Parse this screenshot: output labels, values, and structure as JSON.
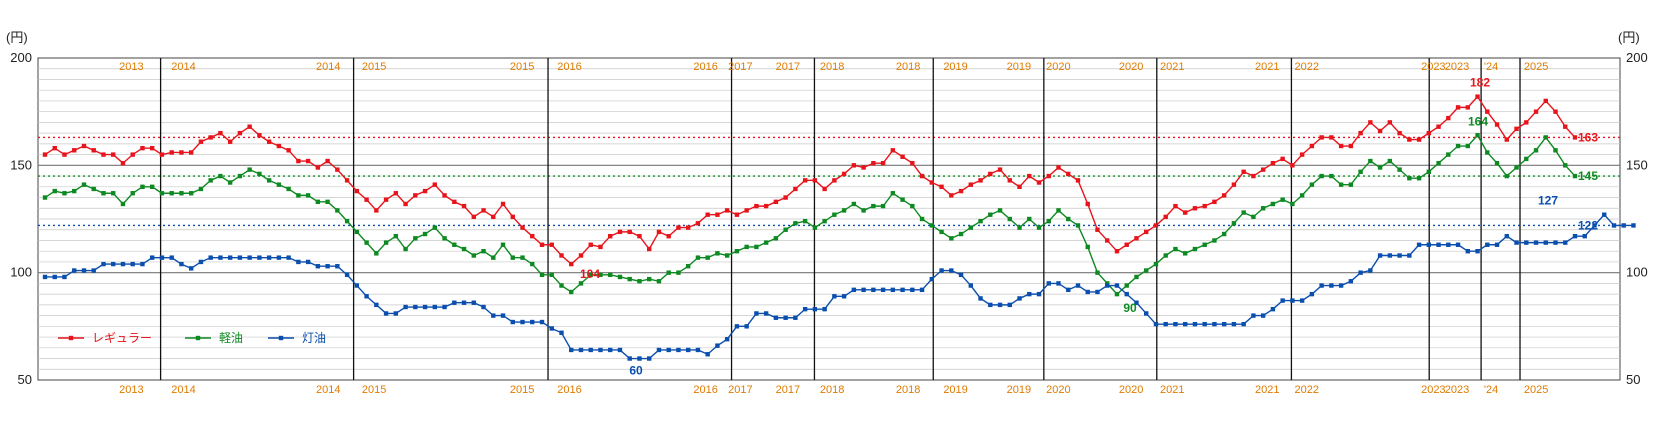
{
  "chart_data": {
    "type": "line",
    "unit_left": "(円)",
    "unit_right": "(円)",
    "ylim": [
      50,
      200
    ],
    "yticks": [
      50,
      100,
      150,
      200
    ],
    "grid": true,
    "legend_position": "bottom-left",
    "year_labels": [
      "2013",
      "2014",
      "2014",
      "2015",
      "2015",
      "2016",
      "2016",
      "2017",
      "2017",
      "2018",
      "2018",
      "2019",
      "2019",
      "2020",
      "2020",
      "2021",
      "2021",
      "2022",
      "2023",
      "2023",
      "'24",
      "2025"
    ],
    "series": [
      {
        "name": "レギュラー",
        "color": "#e8141b",
        "values": [
          155,
          158,
          155,
          157,
          159,
          157,
          155,
          155,
          151,
          155,
          158,
          158,
          155,
          156,
          156,
          156,
          161,
          163,
          165,
          161,
          165,
          168,
          164,
          161,
          159,
          157,
          152,
          152,
          149,
          152,
          148,
          143,
          138,
          134,
          129,
          134,
          137,
          132,
          136,
          138,
          141,
          136,
          133,
          131,
          126,
          129,
          126,
          132,
          126,
          121,
          117,
          113,
          113,
          108,
          104,
          108,
          113,
          112,
          117,
          119,
          119,
          117,
          111,
          119,
          117,
          121,
          121,
          123,
          127,
          127,
          129,
          127,
          129,
          131,
          131,
          133,
          135,
          139,
          143,
          143,
          139,
          143,
          146,
          150,
          149,
          151,
          151,
          157,
          154,
          151,
          145,
          142,
          140,
          136,
          138,
          141,
          143,
          146,
          148,
          143,
          140,
          145,
          142,
          145,
          149,
          146,
          143,
          132,
          120,
          115,
          110,
          113,
          116,
          119,
          122,
          126,
          131,
          128,
          130,
          131,
          133,
          136,
          141,
          147,
          145,
          148,
          151,
          153,
          150,
          155,
          159,
          163,
          163,
          159,
          159,
          165,
          170,
          166,
          170,
          165,
          162,
          162,
          165,
          168,
          172,
          177,
          177,
          182,
          175,
          169,
          162,
          167,
          170,
          175,
          180,
          175,
          168,
          163
        ],
        "ref_value": 163
      },
      {
        "name": "軽油",
        "color": "#0e8a22",
        "values": [
          135,
          138,
          137,
          138,
          141,
          139,
          137,
          137,
          132,
          137,
          140,
          140,
          137,
          137,
          137,
          137,
          139,
          143,
          145,
          142,
          145,
          148,
          146,
          143,
          141,
          139,
          136,
          136,
          133,
          133,
          129,
          124,
          119,
          114,
          109,
          114,
          117,
          111,
          116,
          118,
          121,
          116,
          113,
          111,
          108,
          110,
          107,
          113,
          107,
          107,
          104,
          99,
          99,
          94,
          91,
          95,
          99,
          99,
          99,
          98,
          97,
          96,
          97,
          96,
          100,
          100,
          103,
          107,
          107,
          109,
          108,
          110,
          112,
          112,
          114,
          116,
          120,
          123,
          124,
          121,
          124,
          127,
          129,
          132,
          129,
          131,
          131,
          137,
          134,
          131,
          125,
          122,
          119,
          116,
          118,
          121,
          124,
          127,
          129,
          125,
          121,
          125,
          121,
          124,
          129,
          125,
          122,
          112,
          100,
          95,
          90,
          94,
          98,
          101,
          104,
          108,
          111,
          109,
          111,
          113,
          115,
          118,
          123,
          128,
          126,
          130,
          132,
          134,
          132,
          136,
          141,
          145,
          145,
          141,
          141,
          147,
          152,
          149,
          152,
          148,
          144,
          144,
          147,
          151,
          155,
          159,
          159,
          164,
          156,
          151,
          145,
          149,
          153,
          157,
          163,
          157,
          150,
          145
        ],
        "ref_value": 145
      },
      {
        "name": "灯油",
        "color": "#0b4fae",
        "values": [
          98,
          98,
          98,
          101,
          101,
          101,
          104,
          104,
          104,
          104,
          104,
          107,
          107,
          107,
          104,
          102,
          105,
          107,
          107,
          107,
          107,
          107,
          107,
          107,
          107,
          107,
          105,
          105,
          103,
          103,
          103,
          99,
          94,
          89,
          85,
          81,
          81,
          84,
          84,
          84,
          84,
          84,
          86,
          86,
          86,
          84,
          80,
          80,
          77,
          77,
          77,
          77,
          74,
          72,
          64,
          64,
          64,
          64,
          64,
          64,
          60,
          60,
          60,
          64,
          64,
          64,
          64,
          64,
          62,
          66,
          69,
          75,
          75,
          81,
          81,
          79,
          79,
          79,
          83,
          83,
          83,
          89,
          89,
          92,
          92,
          92,
          92,
          92,
          92,
          92,
          92,
          97,
          101,
          101,
          99,
          94,
          88,
          85,
          85,
          85,
          88,
          90,
          90,
          95,
          95,
          92,
          94,
          91,
          91,
          94,
          94,
          90,
          86,
          81,
          76,
          76,
          76,
          76,
          76,
          76,
          76,
          76,
          76,
          76,
          80,
          80,
          83,
          87,
          87,
          87,
          90,
          94,
          94,
          94,
          96,
          100,
          101,
          108,
          108,
          108,
          108,
          113,
          113,
          113,
          113,
          113,
          110,
          110,
          113,
          113,
          117,
          114,
          114,
          114,
          114,
          114,
          114,
          117,
          117,
          122,
          127,
          122,
          122,
          122
        ],
        "ref_value": 122
      }
    ],
    "annotations": [
      {
        "series": "レギュラー",
        "label": "182",
        "value": 182
      },
      {
        "series": "レギュラー",
        "label": "163",
        "value": 163
      },
      {
        "series": "レギュラー",
        "label": "104",
        "value": 104
      },
      {
        "series": "軽油",
        "label": "164",
        "value": 164
      },
      {
        "series": "軽油",
        "label": "145",
        "value": 145
      },
      {
        "series": "軽油",
        "label": "90",
        "value": 90
      },
      {
        "series": "灯油",
        "label": "127",
        "value": 127
      },
      {
        "series": "灯油",
        "label": "122",
        "value": 122
      },
      {
        "series": "灯油",
        "label": "60",
        "value": 60
      }
    ]
  }
}
